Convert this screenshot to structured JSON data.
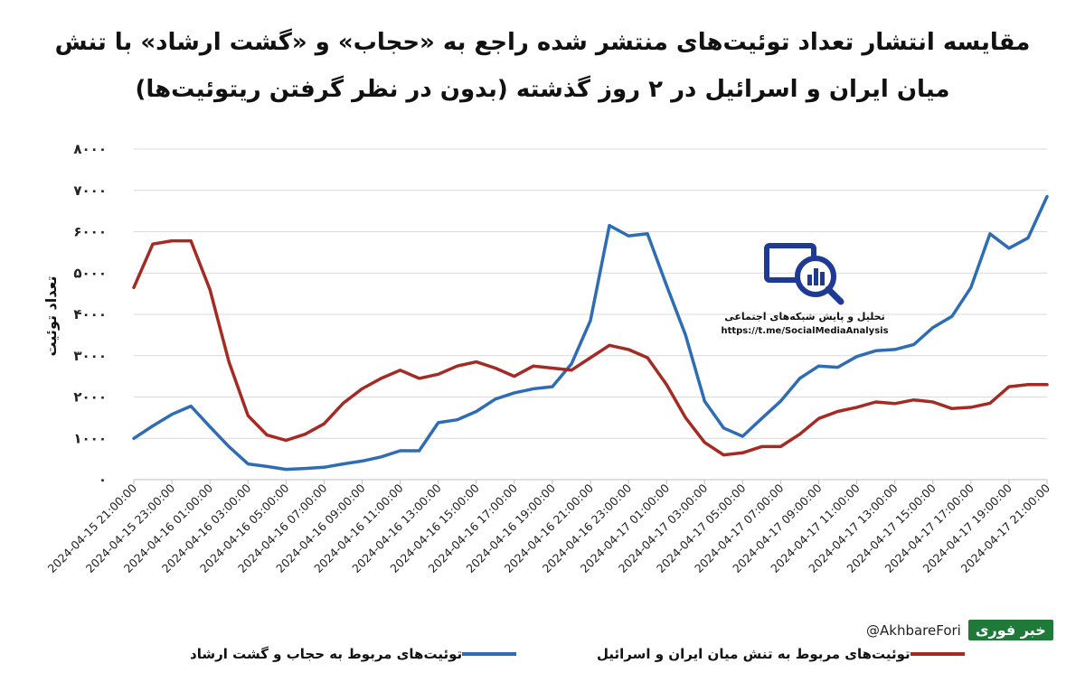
{
  "title_line1": "مقایسه انتشار تعداد توئیت‌های منتشر شده راجع به «حجاب» و «گشت ارشاد» با تنش",
  "title_line2": "میان ایران و اسرائیل در ۲ روز گذشته (بدون در نظر گرفتن ریتوئیت‌ها)",
  "logo": {
    "title": "تحلیل و پایش شبکه‌های اجتماعی",
    "url": "https://t.me/SocialMediaAnalysis"
  },
  "watermark": {
    "handle": "@AkhbareFori",
    "brand": "خبر فوری"
  },
  "colors": {
    "blue": "#2e6db4",
    "red": "#a42a24",
    "grid": "#d9d9d9",
    "axis": "#bfbfbf"
  },
  "chart_data": {
    "type": "line",
    "ylabel": "تعداد توئیت",
    "ylim": [
      0,
      8000
    ],
    "yticks": [
      {
        "value": 0,
        "label": "۰"
      },
      {
        "value": 1000,
        "label": "۱۰۰۰"
      },
      {
        "value": 2000,
        "label": "۲۰۰۰"
      },
      {
        "value": 3000,
        "label": "۳۰۰۰"
      },
      {
        "value": 4000,
        "label": "۴۰۰۰"
      },
      {
        "value": 5000,
        "label": "۵۰۰۰"
      },
      {
        "value": 6000,
        "label": "۶۰۰۰"
      },
      {
        "value": 7000,
        "label": "۷۰۰۰"
      },
      {
        "value": 8000,
        "label": "۸۰۰۰"
      }
    ],
    "grid": true,
    "legend": "bottom",
    "x": [
      "2024-04-15 21:00:00",
      "2024-04-15 22:00:00",
      "2024-04-15 23:00:00",
      "2024-04-16 00:00:00",
      "2024-04-16 01:00:00",
      "2024-04-16 02:00:00",
      "2024-04-16 03:00:00",
      "2024-04-16 04:00:00",
      "2024-04-16 05:00:00",
      "2024-04-16 06:00:00",
      "2024-04-16 07:00:00",
      "2024-04-16 08:00:00",
      "2024-04-16 09:00:00",
      "2024-04-16 10:00:00",
      "2024-04-16 11:00:00",
      "2024-04-16 12:00:00",
      "2024-04-16 13:00:00",
      "2024-04-16 14:00:00",
      "2024-04-16 15:00:00",
      "2024-04-16 16:00:00",
      "2024-04-16 17:00:00",
      "2024-04-16 18:00:00",
      "2024-04-16 19:00:00",
      "2024-04-16 20:00:00",
      "2024-04-16 21:00:00",
      "2024-04-16 22:00:00",
      "2024-04-16 23:00:00",
      "2024-04-17 00:00:00",
      "2024-04-17 01:00:00",
      "2024-04-17 02:00:00",
      "2024-04-17 03:00:00",
      "2024-04-17 04:00:00",
      "2024-04-17 05:00:00",
      "2024-04-17 06:00:00",
      "2024-04-17 07:00:00",
      "2024-04-17 08:00:00",
      "2024-04-17 09:00:00",
      "2024-04-17 10:00:00",
      "2024-04-17 11:00:00",
      "2024-04-17 12:00:00",
      "2024-04-17 13:00:00",
      "2024-04-17 14:00:00",
      "2024-04-17 15:00:00",
      "2024-04-17 16:00:00",
      "2024-04-17 17:00:00",
      "2024-04-17 18:00:00",
      "2024-04-17 19:00:00",
      "2024-04-17 20:00:00",
      "2024-04-17 21:00:00"
    ],
    "xtick_labels": [
      "2024-04-15 21:00:00",
      "2024-04-15 23:00:00",
      "2024-04-16 01:00:00",
      "2024-04-16 03:00:00",
      "2024-04-16 05:00:00",
      "2024-04-16 07:00:00",
      "2024-04-16 09:00:00",
      "2024-04-16 11:00:00",
      "2024-04-16 13:00:00",
      "2024-04-16 15:00:00",
      "2024-04-16 17:00:00",
      "2024-04-16 19:00:00",
      "2024-04-16 21:00:00",
      "2024-04-16 23:00:00",
      "2024-04-17 01:00:00",
      "2024-04-17 03:00:00",
      "2024-04-17 05:00:00",
      "2024-04-17 07:00:00",
      "2024-04-17 09:00:00",
      "2024-04-17 11:00:00",
      "2024-04-17 13:00:00",
      "2024-04-17 15:00:00",
      "2024-04-17 17:00:00",
      "2024-04-17 19:00:00",
      "2024-04-17 21:00:00"
    ],
    "series": [
      {
        "name": "توئیت‌های مربوط به حجاب و گشت ارشاد",
        "color": "#2e6db4",
        "values": [
          1000,
          1300,
          1580,
          1780,
          1280,
          800,
          380,
          320,
          250,
          270,
          300,
          380,
          450,
          550,
          700,
          700,
          1380,
          1450,
          1650,
          1950,
          2100,
          2200,
          2250,
          2800,
          3850,
          6150,
          5900,
          5950,
          4700,
          3500,
          1900,
          1250,
          1050,
          1480,
          1900,
          2450,
          2750,
          2720,
          2980,
          3120,
          3150,
          3270,
          3680,
          3950,
          4650,
          5950,
          5600,
          5850,
          6850
        ]
      },
      {
        "name": "توئیت‌های مربوط به تنش میان ایران و اسرائیل",
        "color": "#a42a24",
        "values": [
          4650,
          5700,
          5780,
          5780,
          4600,
          2850,
          1550,
          1080,
          950,
          1100,
          1350,
          1850,
          2200,
          2450,
          2650,
          2450,
          2550,
          2750,
          2850,
          2700,
          2500,
          2750,
          2700,
          2650,
          2950,
          3250,
          3150,
          2950,
          2300,
          1500,
          900,
          600,
          650,
          800,
          800,
          1100,
          1480,
          1650,
          1750,
          1880,
          1840,
          1930,
          1880,
          1720,
          1750,
          1850,
          2250,
          2300,
          2300
        ]
      }
    ]
  }
}
